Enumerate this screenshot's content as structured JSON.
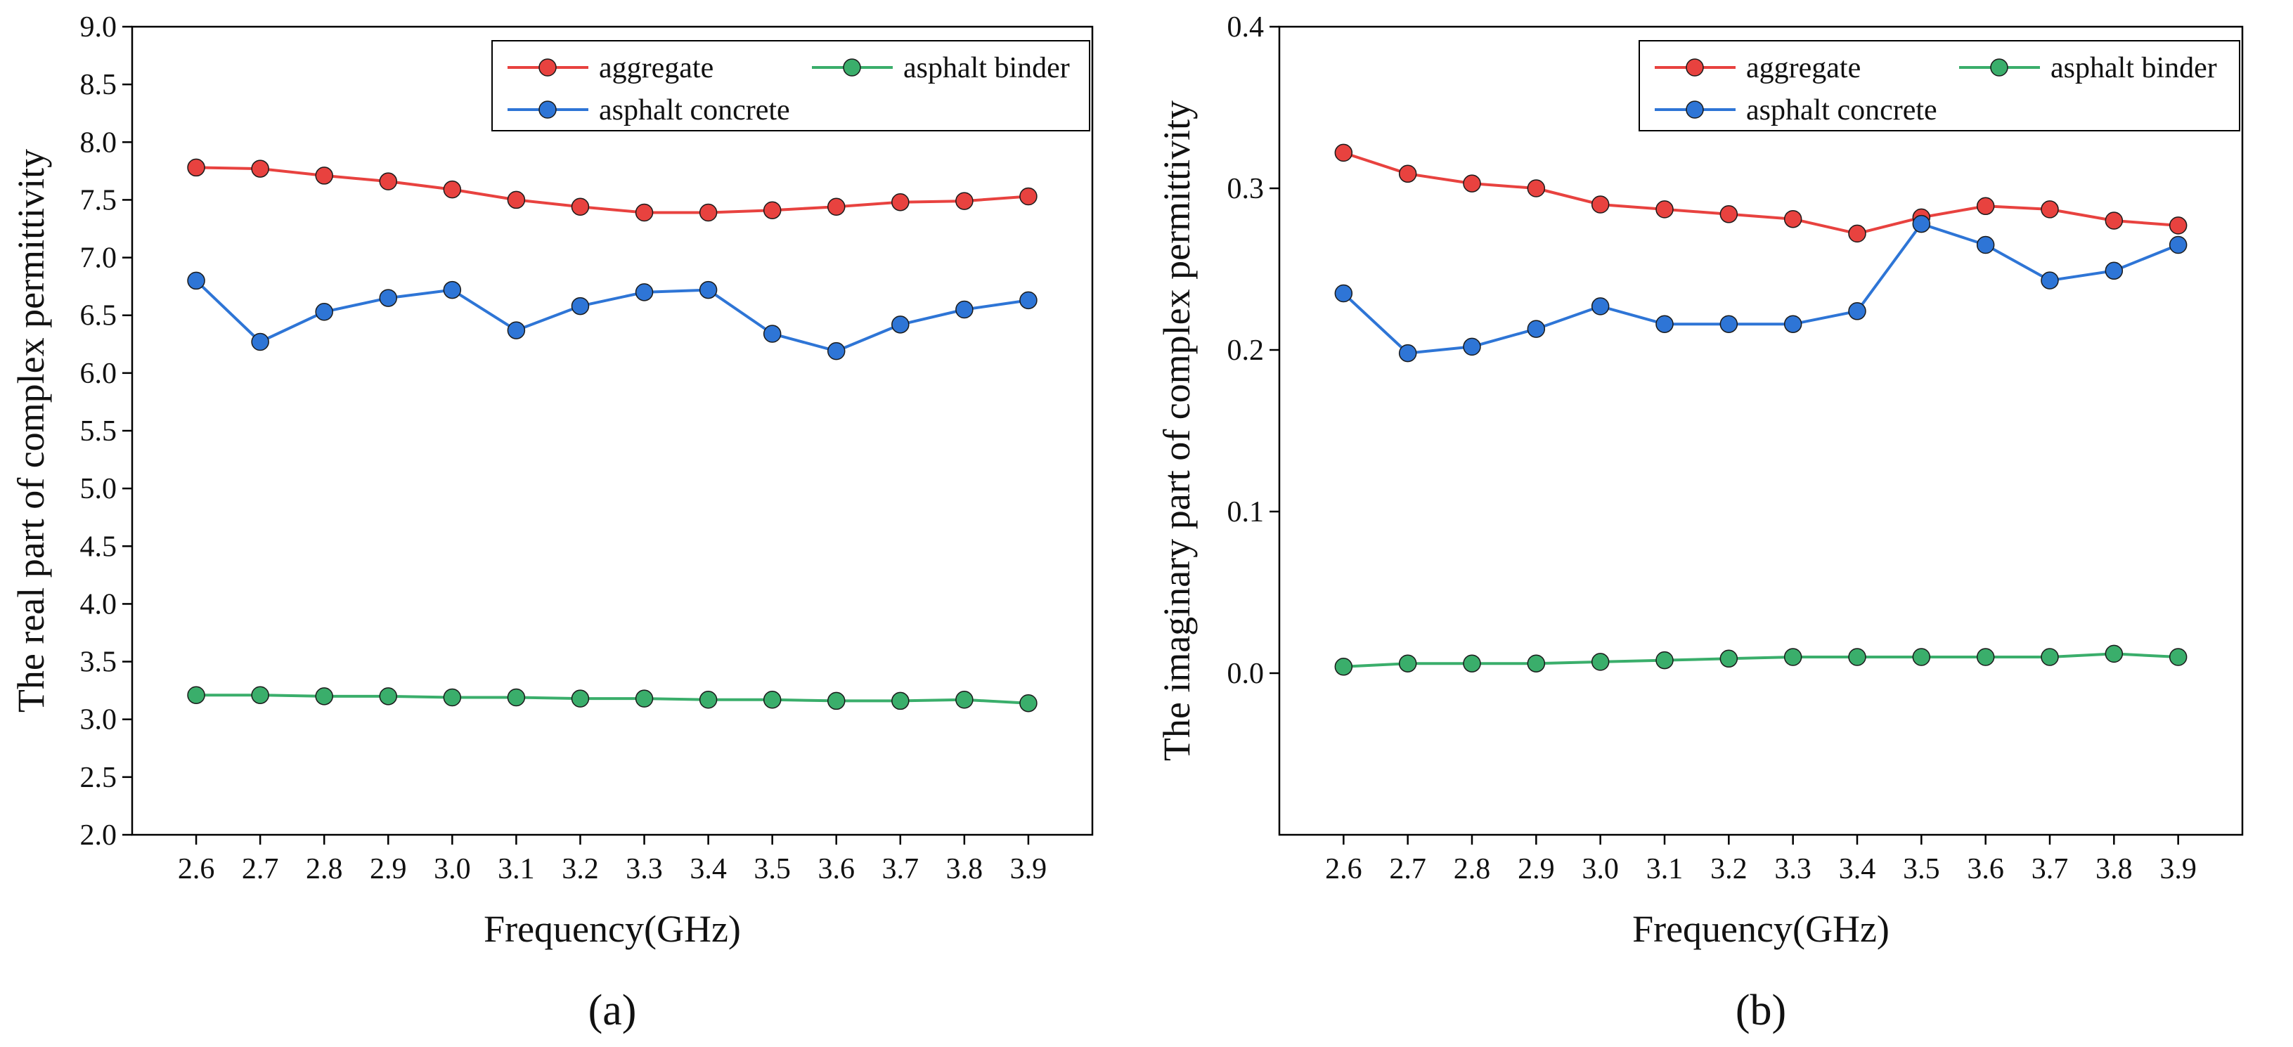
{
  "chart_data": [
    {
      "type": "line",
      "panel_label": "(a)",
      "xlabel": "Frequency(GHz)",
      "ylabel": "The real part of complex permittivity",
      "x": [
        2.6,
        2.7,
        2.8,
        2.9,
        3.0,
        3.1,
        3.2,
        3.3,
        3.4,
        3.5,
        3.6,
        3.7,
        3.8,
        3.9
      ],
      "x_tick_labels": [
        "2.6",
        "2.7",
        "2.8",
        "2.9",
        "3.0",
        "3.1",
        "3.2",
        "3.3",
        "3.4",
        "3.5",
        "3.6",
        "3.7",
        "3.8",
        "3.9"
      ],
      "xlim": [
        2.5,
        4.0
      ],
      "ylim": [
        2.0,
        9.0
      ],
      "y_ticks": [
        2.0,
        2.5,
        3.0,
        3.5,
        4.0,
        4.5,
        5.0,
        5.5,
        6.0,
        6.5,
        7.0,
        7.5,
        8.0,
        8.5,
        9.0
      ],
      "y_tick_labels": [
        "2.0",
        "2.5",
        "3.0",
        "3.5",
        "4.0",
        "4.5",
        "5.0",
        "5.5",
        "6.0",
        "6.5",
        "7.0",
        "7.5",
        "8.0",
        "8.5",
        "9.0"
      ],
      "legend_position": "top-right",
      "series": [
        {
          "name": "aggregate",
          "color": "#e8423f",
          "values": [
            7.78,
            7.77,
            7.71,
            7.66,
            7.59,
            7.5,
            7.44,
            7.39,
            7.39,
            7.41,
            7.44,
            7.48,
            7.49,
            7.53
          ]
        },
        {
          "name": "asphalt binder",
          "color": "#3aae6b",
          "values": [
            3.21,
            3.21,
            3.2,
            3.2,
            3.19,
            3.19,
            3.18,
            3.18,
            3.17,
            3.17,
            3.16,
            3.16,
            3.17,
            3.14
          ]
        },
        {
          "name": "asphalt concrete",
          "color": "#2e75d6",
          "values": [
            6.8,
            6.27,
            6.53,
            6.65,
            6.72,
            6.37,
            6.58,
            6.7,
            6.72,
            6.34,
            6.19,
            6.42,
            6.55,
            6.63
          ]
        }
      ]
    },
    {
      "type": "line",
      "panel_label": "(b)",
      "xlabel": "Frequency(GHz)",
      "ylabel": "The imaginary part of complex permittivity",
      "x": [
        2.6,
        2.7,
        2.8,
        2.9,
        3.0,
        3.1,
        3.2,
        3.3,
        3.4,
        3.5,
        3.6,
        3.7,
        3.8,
        3.9
      ],
      "x_tick_labels": [
        "2.6",
        "2.7",
        "2.8",
        "2.9",
        "3.0",
        "3.1",
        "3.2",
        "3.3",
        "3.4",
        "3.5",
        "3.6",
        "3.7",
        "3.8",
        "3.9"
      ],
      "xlim": [
        2.5,
        4.0
      ],
      "ylim": [
        -0.1,
        0.4
      ],
      "y_ticks": [
        0.0,
        0.1,
        0.2,
        0.3,
        0.4
      ],
      "y_tick_labels": [
        "0.0",
        "0.1",
        "0.2",
        "0.3",
        "0.4"
      ],
      "legend_position": "top-right",
      "series": [
        {
          "name": "aggregate",
          "color": "#e8423f",
          "values": [
            0.322,
            0.309,
            0.303,
            0.3,
            0.29,
            0.287,
            0.284,
            0.281,
            0.272,
            0.282,
            0.289,
            0.287,
            0.28,
            0.277
          ]
        },
        {
          "name": "asphalt binder",
          "color": "#3aae6b",
          "values": [
            0.004,
            0.006,
            0.006,
            0.006,
            0.007,
            0.008,
            0.009,
            0.01,
            0.01,
            0.01,
            0.01,
            0.01,
            0.012,
            0.01
          ]
        },
        {
          "name": "asphalt concrete",
          "color": "#2e75d6",
          "values": [
            0.235,
            0.198,
            0.202,
            0.213,
            0.227,
            0.216,
            0.216,
            0.216,
            0.224,
            0.278,
            0.265,
            0.243,
            0.249,
            0.265
          ]
        }
      ]
    }
  ]
}
